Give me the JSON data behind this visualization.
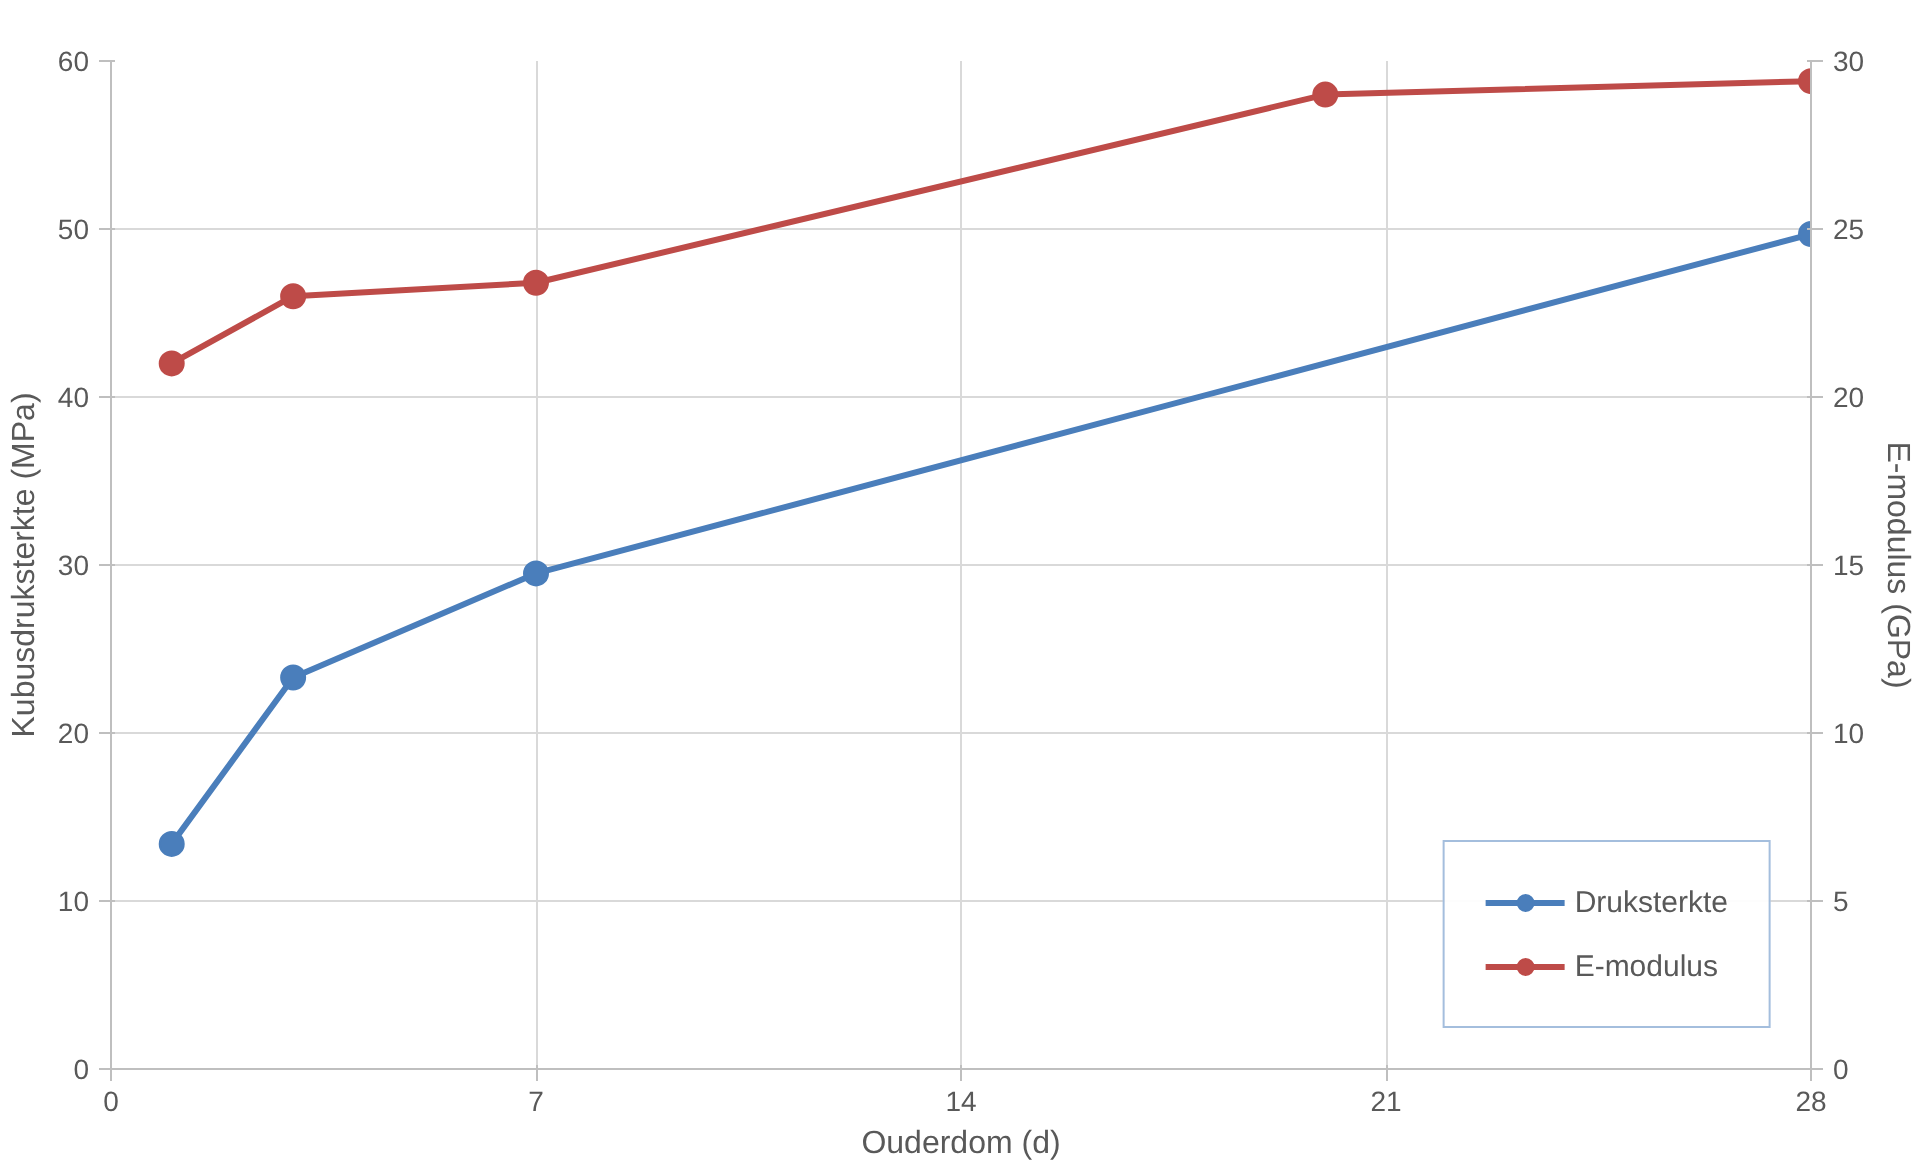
{
  "chart_data": {
    "type": "line",
    "xlabel": "Ouderdom (d)",
    "ylabel": "Kubusdruksterkte (MPa)",
    "y2label": "E-modulus (GPa)",
    "xlim": [
      0,
      28
    ],
    "xticks": [
      0,
      7,
      14,
      21,
      28
    ],
    "ylim": [
      0,
      60
    ],
    "yticks": [
      0,
      10,
      20,
      30,
      40,
      50,
      60
    ],
    "y2lim": [
      0,
      30
    ],
    "y2ticks": [
      0,
      5,
      10,
      15,
      20,
      25,
      30
    ],
    "grid": true,
    "legend": "bottom right",
    "marker": "circle",
    "line_style": "solid",
    "series": [
      {
        "name": "Druksterkte",
        "color": "#4a7ebb",
        "x": [
          1,
          3,
          7,
          28
        ],
        "values": [
          13.4,
          23.3,
          29.5,
          49.7
        ]
      },
      {
        "name": "E-modulus",
        "color": "#be4b48",
        "axis": "y2",
        "x": [
          1,
          3,
          7,
          20,
          28
        ],
        "values": [
          21.0,
          23.0,
          23.4,
          29.0,
          29.4
        ]
      }
    ]
  }
}
